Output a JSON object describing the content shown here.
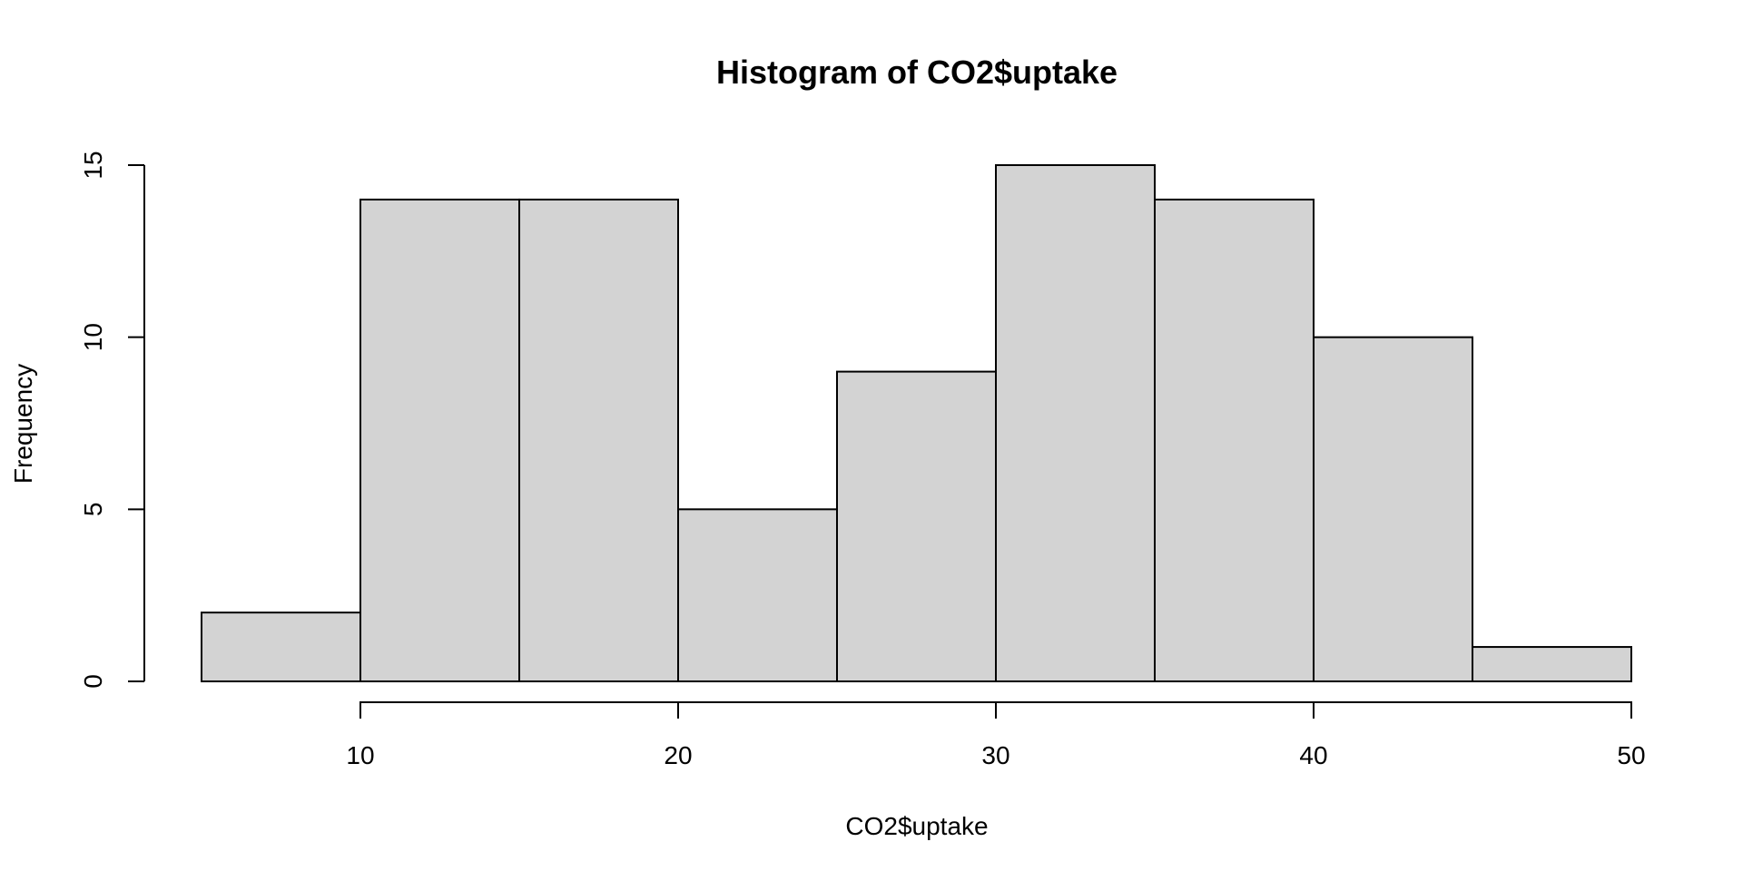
{
  "chart_data": {
    "type": "bar",
    "title": "Histogram of CO2$uptake",
    "xlabel": "CO2$uptake",
    "ylabel": "Frequency",
    "bins": [
      {
        "from": 5,
        "to": 10,
        "count": 2
      },
      {
        "from": 10,
        "to": 15,
        "count": 14
      },
      {
        "from": 15,
        "to": 20,
        "count": 14
      },
      {
        "from": 20,
        "to": 25,
        "count": 5
      },
      {
        "from": 25,
        "to": 30,
        "count": 9
      },
      {
        "from": 30,
        "to": 35,
        "count": 15
      },
      {
        "from": 35,
        "to": 40,
        "count": 14
      },
      {
        "from": 40,
        "to": 45,
        "count": 10
      },
      {
        "from": 45,
        "to": 50,
        "count": 1
      }
    ],
    "x_ticks": [
      10,
      20,
      30,
      40,
      50
    ],
    "y_ticks": [
      0,
      5,
      10,
      15
    ],
    "xlim": [
      5,
      50
    ],
    "ylim": [
      0,
      15
    ],
    "bar_color": "#d3d3d3",
    "grid": false
  }
}
